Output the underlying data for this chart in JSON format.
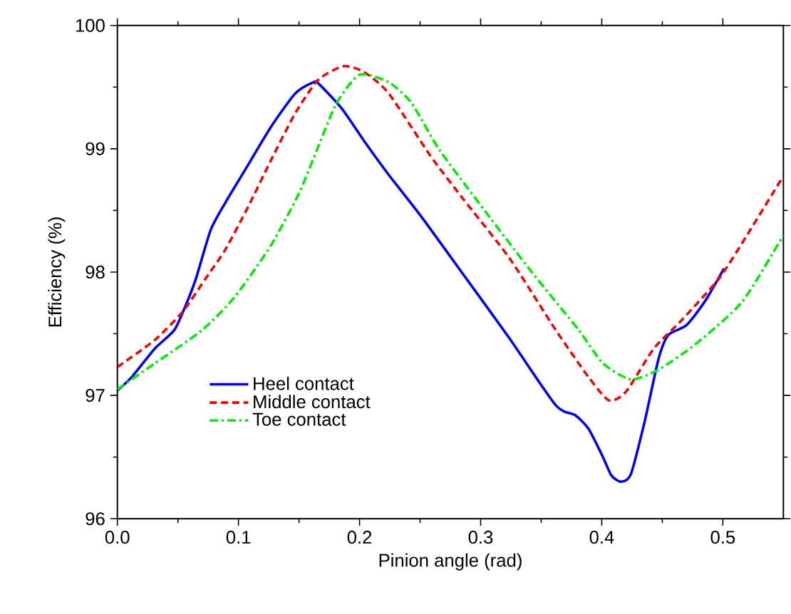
{
  "chart_data": {
    "type": "line",
    "xlabel": "Pinion angle (rad)",
    "ylabel": "Efficiency (%)",
    "xlim": [
      0,
      0.55
    ],
    "ylim": [
      96,
      100
    ],
    "xticks": [
      {
        "value": 0,
        "label": "0.0"
      },
      0.1,
      0.2,
      0.3,
      0.4,
      0.5
    ],
    "yticks": [
      96,
      97,
      98,
      99,
      100
    ],
    "grid": false,
    "legend": "left",
    "marker": "none",
    "series": [
      {
        "name": "Heel contact",
        "color": "#0000ff",
        "line_style": "solid",
        "x": [
          0,
          0.012,
          0.031,
          0.047,
          0.056,
          0.065,
          0.077,
          0.089,
          0.108,
          0.127,
          0.147,
          0.162,
          0.166,
          0.185,
          0.204,
          0.224,
          0.251,
          0.285,
          0.324,
          0.362,
          0.378,
          0.389,
          0.401,
          0.408,
          0.416,
          0.424,
          0.435,
          0.447,
          0.455,
          0.47,
          0.485,
          0.501
        ],
        "values": [
          97.04,
          97.15,
          97.38,
          97.53,
          97.72,
          97.95,
          98.34,
          98.56,
          98.87,
          99.18,
          99.45,
          99.54,
          99.53,
          99.33,
          99.06,
          98.79,
          98.45,
          97.99,
          97.46,
          96.92,
          96.84,
          96.73,
          96.5,
          96.35,
          96.3,
          96.36,
          96.77,
          97.3,
          97.49,
          97.57,
          97.76,
          98.03
        ]
      },
      {
        "name": "Middle contact",
        "color": "#ff0000",
        "line_style": "dashed",
        "x": [
          0,
          0.031,
          0.054,
          0.073,
          0.089,
          0.108,
          0.127,
          0.147,
          0.166,
          0.187,
          0.204,
          0.224,
          0.258,
          0.285,
          0.324,
          0.362,
          0.389,
          0.406,
          0.42,
          0.443,
          0.466,
          0.497,
          0.52,
          0.55
        ],
        "values": [
          97.23,
          97.45,
          97.68,
          97.95,
          98.18,
          98.53,
          98.91,
          99.29,
          99.56,
          99.67,
          99.62,
          99.45,
          98.95,
          98.6,
          98.11,
          97.53,
          97.15,
          96.96,
          97.03,
          97.38,
          97.61,
          97.95,
          98.3,
          98.78
        ]
      },
      {
        "name": "Toe contact",
        "color": "#00ee00",
        "line_style": "dashdot",
        "x": [
          0,
          0.031,
          0.07,
          0.097,
          0.127,
          0.15,
          0.166,
          0.181,
          0.2,
          0.224,
          0.243,
          0.266,
          0.304,
          0.343,
          0.381,
          0.401,
          0.424,
          0.447,
          0.478,
          0.516,
          0.55
        ],
        "values": [
          97.05,
          97.26,
          97.53,
          97.8,
          98.22,
          98.64,
          99.02,
          99.37,
          99.6,
          99.54,
          99.37,
          98.99,
          98.49,
          97.99,
          97.53,
          97.26,
          97.13,
          97.21,
          97.42,
          97.76,
          98.3
        ]
      }
    ]
  }
}
